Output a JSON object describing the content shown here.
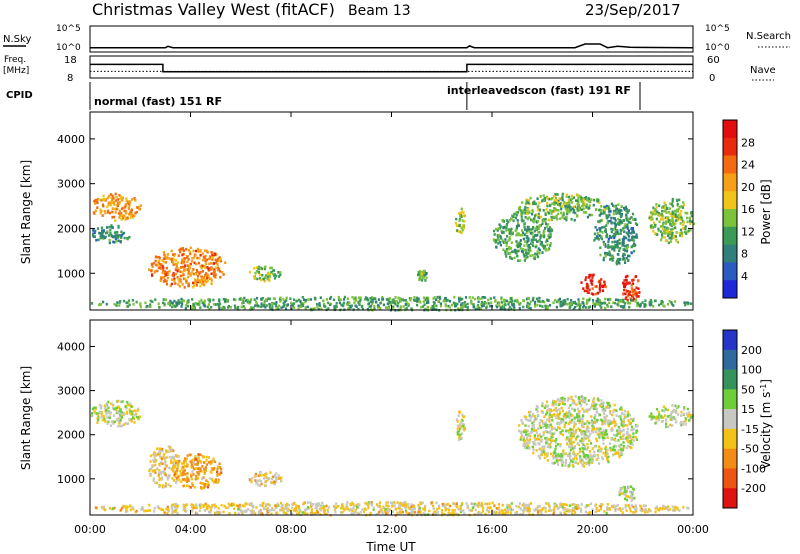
{
  "header": {
    "station": "Christmas Valley West (fitACF)",
    "beam": "Beam 13",
    "date": "23/Sep/2017"
  },
  "strip_labels": {
    "nsky": "N.Sky",
    "nsky_ticks": [
      "10^5",
      "10^0"
    ],
    "nsearch": "N.Search",
    "nsearch_ticks": [
      "10^5",
      "10^0"
    ],
    "freq_line1": "Freq.",
    "freq_line2": "[MHz]",
    "freq_ticks": [
      "18",
      "8"
    ],
    "nave": "Nave",
    "nave_ticks": [
      "60",
      "0"
    ],
    "cpid": "CPID",
    "cpid_modes": [
      {
        "label": "normal (fast) 151 RF",
        "start_hour": 0
      },
      {
        "label": "interleavedscon (fast) 191 RF",
        "start_hour": 15
      }
    ]
  },
  "x_axis": {
    "label": "Time UT",
    "ticks": [
      "00:00",
      "04:00",
      "08:00",
      "12:00",
      "16:00",
      "20:00",
      "00:00"
    ]
  },
  "power_colorbar": {
    "label": "Power [dB]",
    "ticks": [
      "4",
      "8",
      "12",
      "16",
      "20",
      "24",
      "28"
    ],
    "colors": [
      "#1e2ad8",
      "#2a5bc0",
      "#2f7f7a",
      "#3b9a55",
      "#7cc23a",
      "#f0c418",
      "#f6a017",
      "#f36a10",
      "#ea2a0c",
      "#e30d0d"
    ]
  },
  "velocity_colorbar": {
    "label_main": "Velocity [m s",
    "label_sup": "-1",
    "label_end": "]",
    "ticks": [
      "200",
      "100",
      "50",
      "15",
      "-15",
      "-50",
      "-100",
      "-200"
    ],
    "colors": [
      "#2535c8",
      "#2f6a9e",
      "#34925c",
      "#6ccf3a",
      "#c8c8c2",
      "#f4c217",
      "#f38c16",
      "#ef5512",
      "#e0140e"
    ]
  },
  "chart_data": {
    "type": "heatmap",
    "x_unit": "hours UT",
    "x_range": [
      0,
      24
    ],
    "panels": [
      {
        "name": "power",
        "ylabel": "Slant Range [km]",
        "yticks": [
          1000,
          2000,
          3000,
          4000
        ],
        "ylim": [
          180,
          4600
        ],
        "clim": [
          0,
          30
        ],
        "regions": [
          {
            "t": [
              0.0,
              2.0
            ],
            "r": [
              2200,
              2800
            ],
            "value": 20
          },
          {
            "t": [
              0.0,
              1.6
            ],
            "r": [
              1700,
              2100
            ],
            "value": 9
          },
          {
            "t": [
              2.3,
              5.4
            ],
            "r": [
              700,
              1600
            ],
            "value": 21
          },
          {
            "t": [
              6.3,
              7.6
            ],
            "r": [
              850,
              1200
            ],
            "value": 14
          },
          {
            "t": [
              13.0,
              13.4
            ],
            "r": [
              850,
              1100
            ],
            "value": 12
          },
          {
            "t": [
              14.5,
              14.9
            ],
            "r": [
              1900,
              2500
            ],
            "value": 14
          },
          {
            "t": [
              16.0,
              18.4
            ],
            "r": [
              1300,
              2400
            ],
            "value": 11
          },
          {
            "t": [
              17.0,
              20.5
            ],
            "r": [
              2200,
              2800
            ],
            "value": 12
          },
          {
            "t": [
              19.5,
              20.5
            ],
            "r": [
              550,
              1000
            ],
            "value": 27
          },
          {
            "t": [
              20.0,
              21.8
            ],
            "r": [
              1200,
              2600
            ],
            "value": 9
          },
          {
            "t": [
              21.1,
              21.9
            ],
            "r": [
              400,
              1000
            ],
            "value": 26
          },
          {
            "t": [
              22.2,
              24.0
            ],
            "r": [
              1700,
              2700
            ],
            "value": 13
          },
          {
            "t": [
              0.0,
              24.0
            ],
            "r": [
              200,
              500
            ],
            "value": 11
          }
        ]
      },
      {
        "name": "velocity",
        "ylabel": "Slant Range [km]",
        "yticks": [
          1000,
          2000,
          3000,
          4000
        ],
        "ylim": [
          180,
          4600
        ],
        "clim": [
          -250,
          250
        ],
        "regions": [
          {
            "t": [
              0.0,
              2.0
            ],
            "r": [
              2200,
              2800
            ],
            "value": 0
          },
          {
            "t": [
              2.3,
              3.6
            ],
            "r": [
              800,
              1800
            ],
            "value": -35
          },
          {
            "t": [
              3.2,
              5.3
            ],
            "r": [
              800,
              1600
            ],
            "value": -80
          },
          {
            "t": [
              6.3,
              7.6
            ],
            "r": [
              850,
              1200
            ],
            "value": -40
          },
          {
            "t": [
              14.5,
              14.9
            ],
            "r": [
              1900,
              2600
            ],
            "value": 0
          },
          {
            "t": [
              17.0,
              21.8
            ],
            "r": [
              1300,
              2900
            ],
            "value": 0
          },
          {
            "t": [
              21.0,
              21.7
            ],
            "r": [
              500,
              900
            ],
            "value": 0
          },
          {
            "t": [
              22.2,
              24.0
            ],
            "r": [
              2200,
              2700
            ],
            "value": 0
          },
          {
            "t": [
              0.0,
              24.0
            ],
            "r": [
              200,
              500
            ],
            "value": -30
          }
        ]
      }
    ],
    "n_sky": [
      {
        "t": 0,
        "v": 0.4
      },
      {
        "t": 3,
        "v": 0.4
      },
      {
        "t": 3.1,
        "v": 0.7
      },
      {
        "t": 3.3,
        "v": 0.4
      },
      {
        "t": 15,
        "v": 0.4
      },
      {
        "t": 15.1,
        "v": 0.8
      },
      {
        "t": 15.3,
        "v": 0.4
      },
      {
        "t": 19.3,
        "v": 0.4
      },
      {
        "t": 19.7,
        "v": 1.2
      },
      {
        "t": 20.3,
        "v": 1.2
      },
      {
        "t": 20.6,
        "v": 0.4
      },
      {
        "t": 21.0,
        "v": 0.7
      },
      {
        "t": 21.5,
        "v": 0.5
      },
      {
        "t": 24,
        "v": 0.4
      }
    ],
    "frequency_mhz": [
      {
        "t": 0,
        "v": 14.2
      },
      {
        "t": 2.9,
        "v": 14.2
      },
      {
        "t": 2.9,
        "v": 10.8
      },
      {
        "t": 15,
        "v": 10.8
      },
      {
        "t": 15,
        "v": 14.2
      },
      {
        "t": 24,
        "v": 14.2
      }
    ],
    "nave": [
      {
        "t": 0,
        "v": 18
      },
      {
        "t": 24,
        "v": 18
      }
    ]
  }
}
